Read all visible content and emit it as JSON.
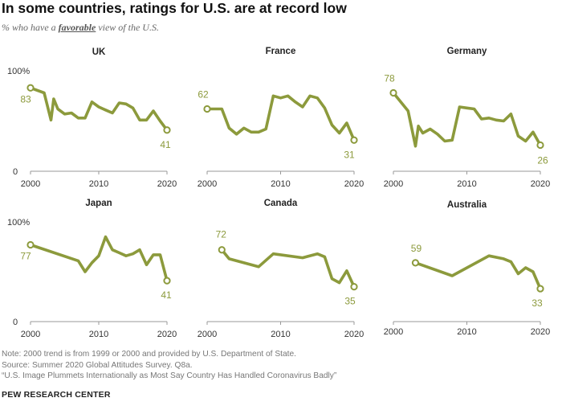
{
  "title": "In some countries, ratings for U.S. are at record low",
  "subtitle": {
    "prefix": "% who have a ",
    "emphasis": "favorable",
    "suffix": " view of the U.S."
  },
  "colors": {
    "line": "#8c9a3c",
    "label": "#8c9a3c",
    "axis": "#999999",
    "text": "#333333"
  },
  "chart_data": [
    {
      "type": "line",
      "title": "UK",
      "xlim": [
        2000,
        2020
      ],
      "ylim": [
        0,
        100
      ],
      "ytick_labels": [
        "100%",
        "0"
      ],
      "xticks": [
        "2000",
        "2010",
        "2020"
      ],
      "x": [
        2000,
        2002,
        2003,
        2003.4,
        2004,
        2005,
        2006,
        2007,
        2008,
        2009,
        2010,
        2011,
        2012,
        2013,
        2014,
        2015,
        2016,
        2017,
        2018,
        2019,
        2020
      ],
      "y": [
        83,
        78,
        51,
        72,
        62,
        57,
        58,
        53,
        53,
        69,
        64,
        61,
        58,
        68,
        67,
        63,
        51,
        51,
        60,
        50,
        41
      ],
      "start_label": "83",
      "end_label": "41"
    },
    {
      "type": "line",
      "title": "France",
      "xlim": [
        2000,
        2020
      ],
      "ylim": [
        0,
        100
      ],
      "ytick_labels": [],
      "xticks": [
        "2000",
        "2010",
        "2020"
      ],
      "x": [
        2000,
        2002,
        2003,
        2004,
        2005,
        2006,
        2007,
        2008,
        2009,
        2010,
        2011,
        2012,
        2013,
        2014,
        2015,
        2016,
        2017,
        2018,
        2019,
        2020
      ],
      "y": [
        62,
        62,
        43,
        37,
        43,
        39,
        39,
        42,
        75,
        73,
        75,
        69,
        64,
        75,
        73,
        63,
        46,
        38,
        48,
        31
      ],
      "start_label": "62",
      "end_label": "31"
    },
    {
      "type": "line",
      "title": "Germany",
      "xlim": [
        2000,
        2020
      ],
      "ylim": [
        0,
        100
      ],
      "ytick_labels": [],
      "xticks": [
        "2000",
        "2010",
        "2020"
      ],
      "x": [
        2000,
        2002,
        2003,
        2003.4,
        2004,
        2005,
        2006,
        2007,
        2008,
        2009,
        2010,
        2011,
        2012,
        2013,
        2014,
        2015,
        2016,
        2017,
        2018,
        2019,
        2020
      ],
      "y": [
        78,
        60,
        25,
        45,
        38,
        42,
        37,
        30,
        31,
        64,
        63,
        62,
        52,
        53,
        51,
        50,
        57,
        35,
        30,
        39,
        26
      ],
      "start_label": "78",
      "end_label": "26"
    },
    {
      "type": "line",
      "title": "Japan",
      "xlim": [
        2000,
        2020
      ],
      "ylim": [
        0,
        100
      ],
      "ytick_labels": [
        "100%",
        "0"
      ],
      "xticks": [
        "2000",
        "2010",
        "2020"
      ],
      "x": [
        2000,
        2007,
        2008,
        2009,
        2010,
        2011,
        2012,
        2013,
        2014,
        2015,
        2016,
        2017,
        2018,
        2019,
        2020
      ],
      "y": [
        77,
        61,
        50,
        59,
        66,
        85,
        72,
        69,
        66,
        68,
        72,
        57,
        67,
        67,
        41
      ],
      "start_label": "77",
      "end_label": "41"
    },
    {
      "type": "line",
      "title": "Canada",
      "xlim": [
        2000,
        2020
      ],
      "ylim": [
        0,
        100
      ],
      "ytick_labels": [],
      "xticks": [
        "2000",
        "2010",
        "2020"
      ],
      "x": [
        2002,
        2003,
        2007,
        2009,
        2013,
        2015,
        2016,
        2017,
        2018,
        2019,
        2020
      ],
      "y": [
        72,
        63,
        55,
        68,
        64,
        68,
        65,
        43,
        39,
        51,
        35
      ],
      "start_label": "72",
      "end_label": "35"
    },
    {
      "type": "line",
      "title": "Australia",
      "xlim": [
        2000,
        2020
      ],
      "ylim": [
        0,
        100
      ],
      "ytick_labels": [],
      "xticks": [
        "2000",
        "2010",
        "2020"
      ],
      "x": [
        2003,
        2008,
        2013,
        2015,
        2016,
        2017,
        2018,
        2019,
        2020
      ],
      "y": [
        59,
        46,
        66,
        63,
        60,
        48,
        54,
        50,
        33
      ],
      "start_label": "59",
      "end_label": "33"
    }
  ],
  "notes": [
    "Note: 2000 trend is from 1999 or 2000 and provided by U.S. Department of State.",
    "Source: Summer 2020 Global Attitudes Survey. Q8a.",
    "“U.S. Image Plummets Internationally as Most Say Country Has Handled Coronavirus Badly”"
  ],
  "brand": "PEW RESEARCH CENTER"
}
